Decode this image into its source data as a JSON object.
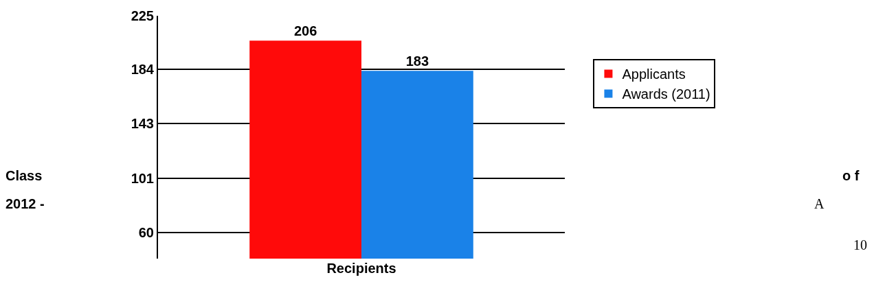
{
  "chart_data": {
    "type": "bar",
    "categories": [
      "Recipients"
    ],
    "series": [
      {
        "name": "Applicants",
        "color": "#ff0a0a",
        "values": [
          206
        ]
      },
      {
        "name": "Awards (2011)",
        "color": "#1a82e8",
        "values": [
          183
        ]
      }
    ],
    "ylim": [
      40,
      225
    ],
    "yticks": [
      60,
      101,
      143,
      184,
      225
    ],
    "grid": "y",
    "legend": "right",
    "data_labels": true,
    "annotations": [
      "Class",
      "2012 -",
      "o f",
      "A",
      "10"
    ]
  }
}
